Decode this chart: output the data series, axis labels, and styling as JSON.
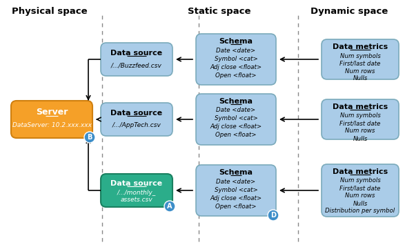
{
  "title_physical": "Physical space",
  "title_static": "Static space",
  "title_dynamic": "Dynamic space",
  "server_label1": "Server",
  "server_label2": "DataServer: 10.2.xxx.xxx",
  "schema_title": "Schema",
  "schema_lines": [
    "Date <date>",
    "Symbol <cat>",
    "Adj close <float>",
    "Open <float>"
  ],
  "dm_title": "Data metrics",
  "dm_lines_1": [
    "Num symbols",
    "First/last date",
    "Num rows",
    "Nulls"
  ],
  "dm_lines_2": [
    "Num symbols",
    "First/last date",
    "Num rows",
    "Nulls"
  ],
  "dm_lines_3": [
    "Num symbols",
    "First/last date",
    "Num rows",
    "Nulls",
    "Distribution per symbol"
  ],
  "color_orange": "#F5A028",
  "color_blue_box": "#AACCE8",
  "color_green": "#2BAD8A",
  "color_circle_blue": "#3D8EC9",
  "color_bg": "#FFFFFF",
  "color_edge_blue": "#7AAABB",
  "color_edge_orange": "#D08010",
  "color_edge_green": "#1A8060"
}
